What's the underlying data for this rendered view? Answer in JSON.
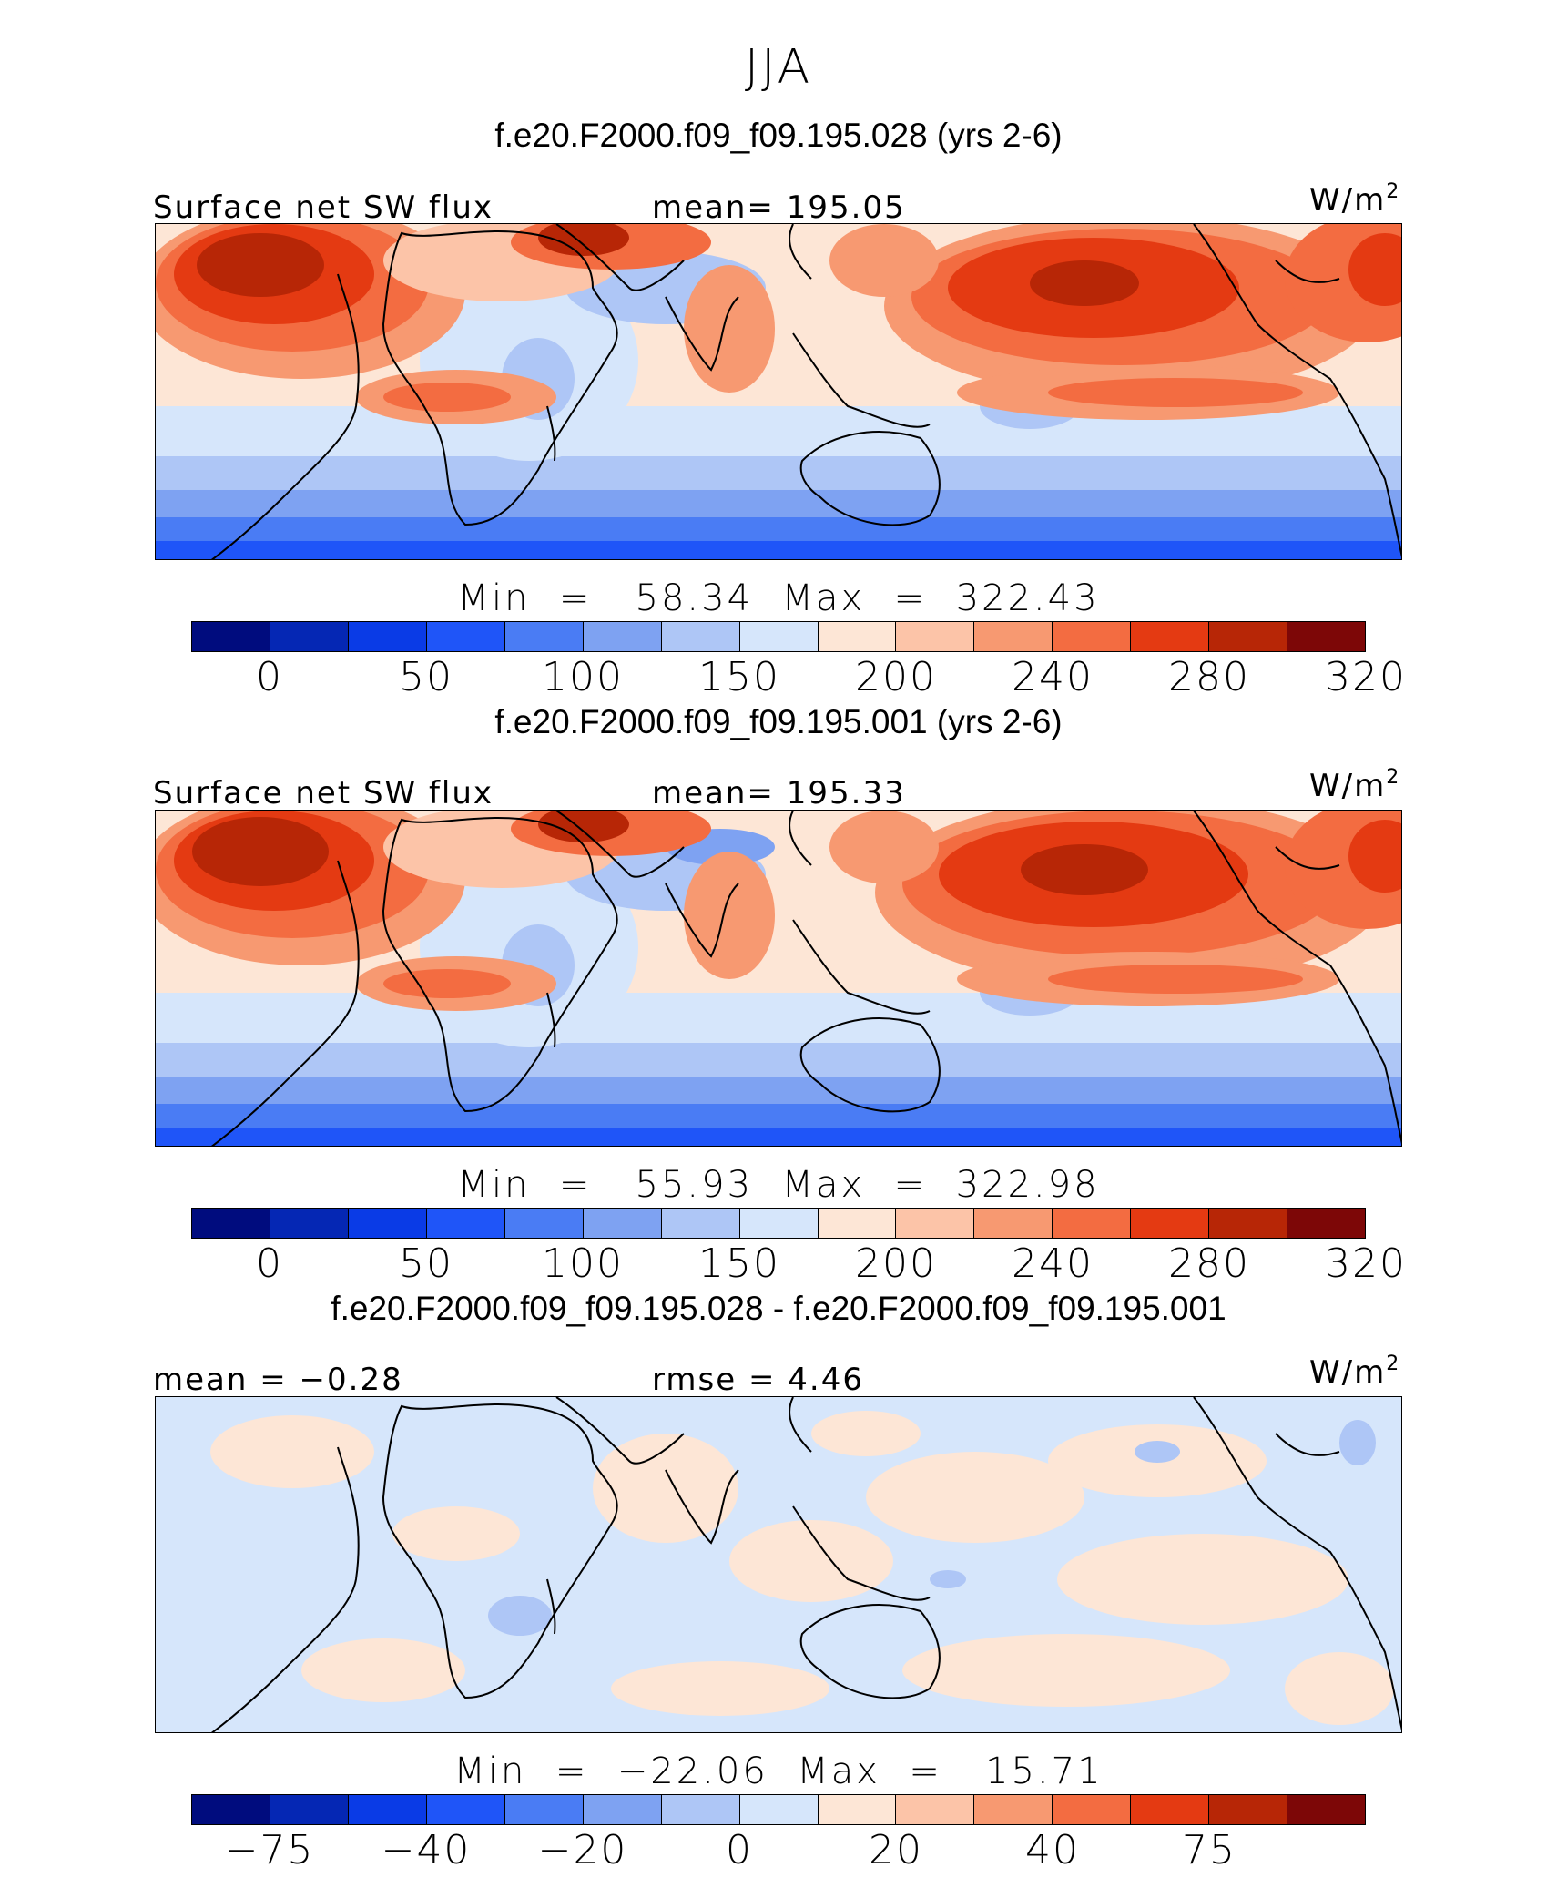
{
  "figure": {
    "season": "JJA",
    "units_base": "W/m",
    "units_exp": "2"
  },
  "chart_data": [
    {
      "type": "heatmap",
      "title": "f.e20.F2000.f09_f09.195.028 (yrs 2-6)",
      "field": "Surface net SW flux",
      "mean_label": "mean=",
      "mean_value": "195.05",
      "min_label": "Min",
      "min_value": "58.34",
      "max_label": "Max",
      "max_value": "322.43",
      "colorbar_ticks": [
        "0",
        "50",
        "100",
        "150",
        "200",
        "240",
        "280",
        "320"
      ],
      "colorbar_colors": [
        "#000c7e",
        "#0527b4",
        "#0a3be6",
        "#1f55f8",
        "#4a7cf4",
        "#7ea2f2",
        "#aec6f6",
        "#d6e6fb",
        "#fde6d6",
        "#fcc4a8",
        "#f79971",
        "#f36c41",
        "#e43a12",
        "#b72606",
        "#7d0707"
      ]
    },
    {
      "type": "heatmap",
      "title": "f.e20.F2000.f09_f09.195.001 (yrs 2-6)",
      "field": "Surface net SW flux",
      "mean_label": "mean=",
      "mean_value": "195.33",
      "min_label": "Min",
      "min_value": "55.93",
      "max_label": "Max",
      "max_value": "322.98",
      "colorbar_ticks": [
        "0",
        "50",
        "100",
        "150",
        "200",
        "240",
        "280",
        "320"
      ],
      "colorbar_colors": [
        "#000c7e",
        "#0527b4",
        "#0a3be6",
        "#1f55f8",
        "#4a7cf4",
        "#7ea2f2",
        "#aec6f6",
        "#d6e6fb",
        "#fde6d6",
        "#fcc4a8",
        "#f79971",
        "#f36c41",
        "#e43a12",
        "#b72606",
        "#7d0707"
      ]
    },
    {
      "type": "heatmap",
      "title": "f.e20.F2000.f09_f09.195.028 - f.e20.F2000.f09_f09.195.001",
      "mean_label": "mean =",
      "mean_value": "−0.28",
      "rmse_label": "rmse =",
      "rmse_value": "4.46",
      "min_label": "Min",
      "min_value": "−22.06",
      "max_label": "Max",
      "max_value": "15.71",
      "colorbar_ticks": [
        "−75",
        "−40",
        "−20",
        "0",
        "20",
        "40",
        "75"
      ],
      "colorbar_colors": [
        "#000c7e",
        "#0527b4",
        "#0a3be6",
        "#1f55f8",
        "#4a7cf4",
        "#7ea2f2",
        "#aec6f6",
        "#d6e6fb",
        "#fde6d6",
        "#fcc4a8",
        "#f79971",
        "#f36c41",
        "#e43a12",
        "#b72606",
        "#7d0707"
      ]
    }
  ]
}
